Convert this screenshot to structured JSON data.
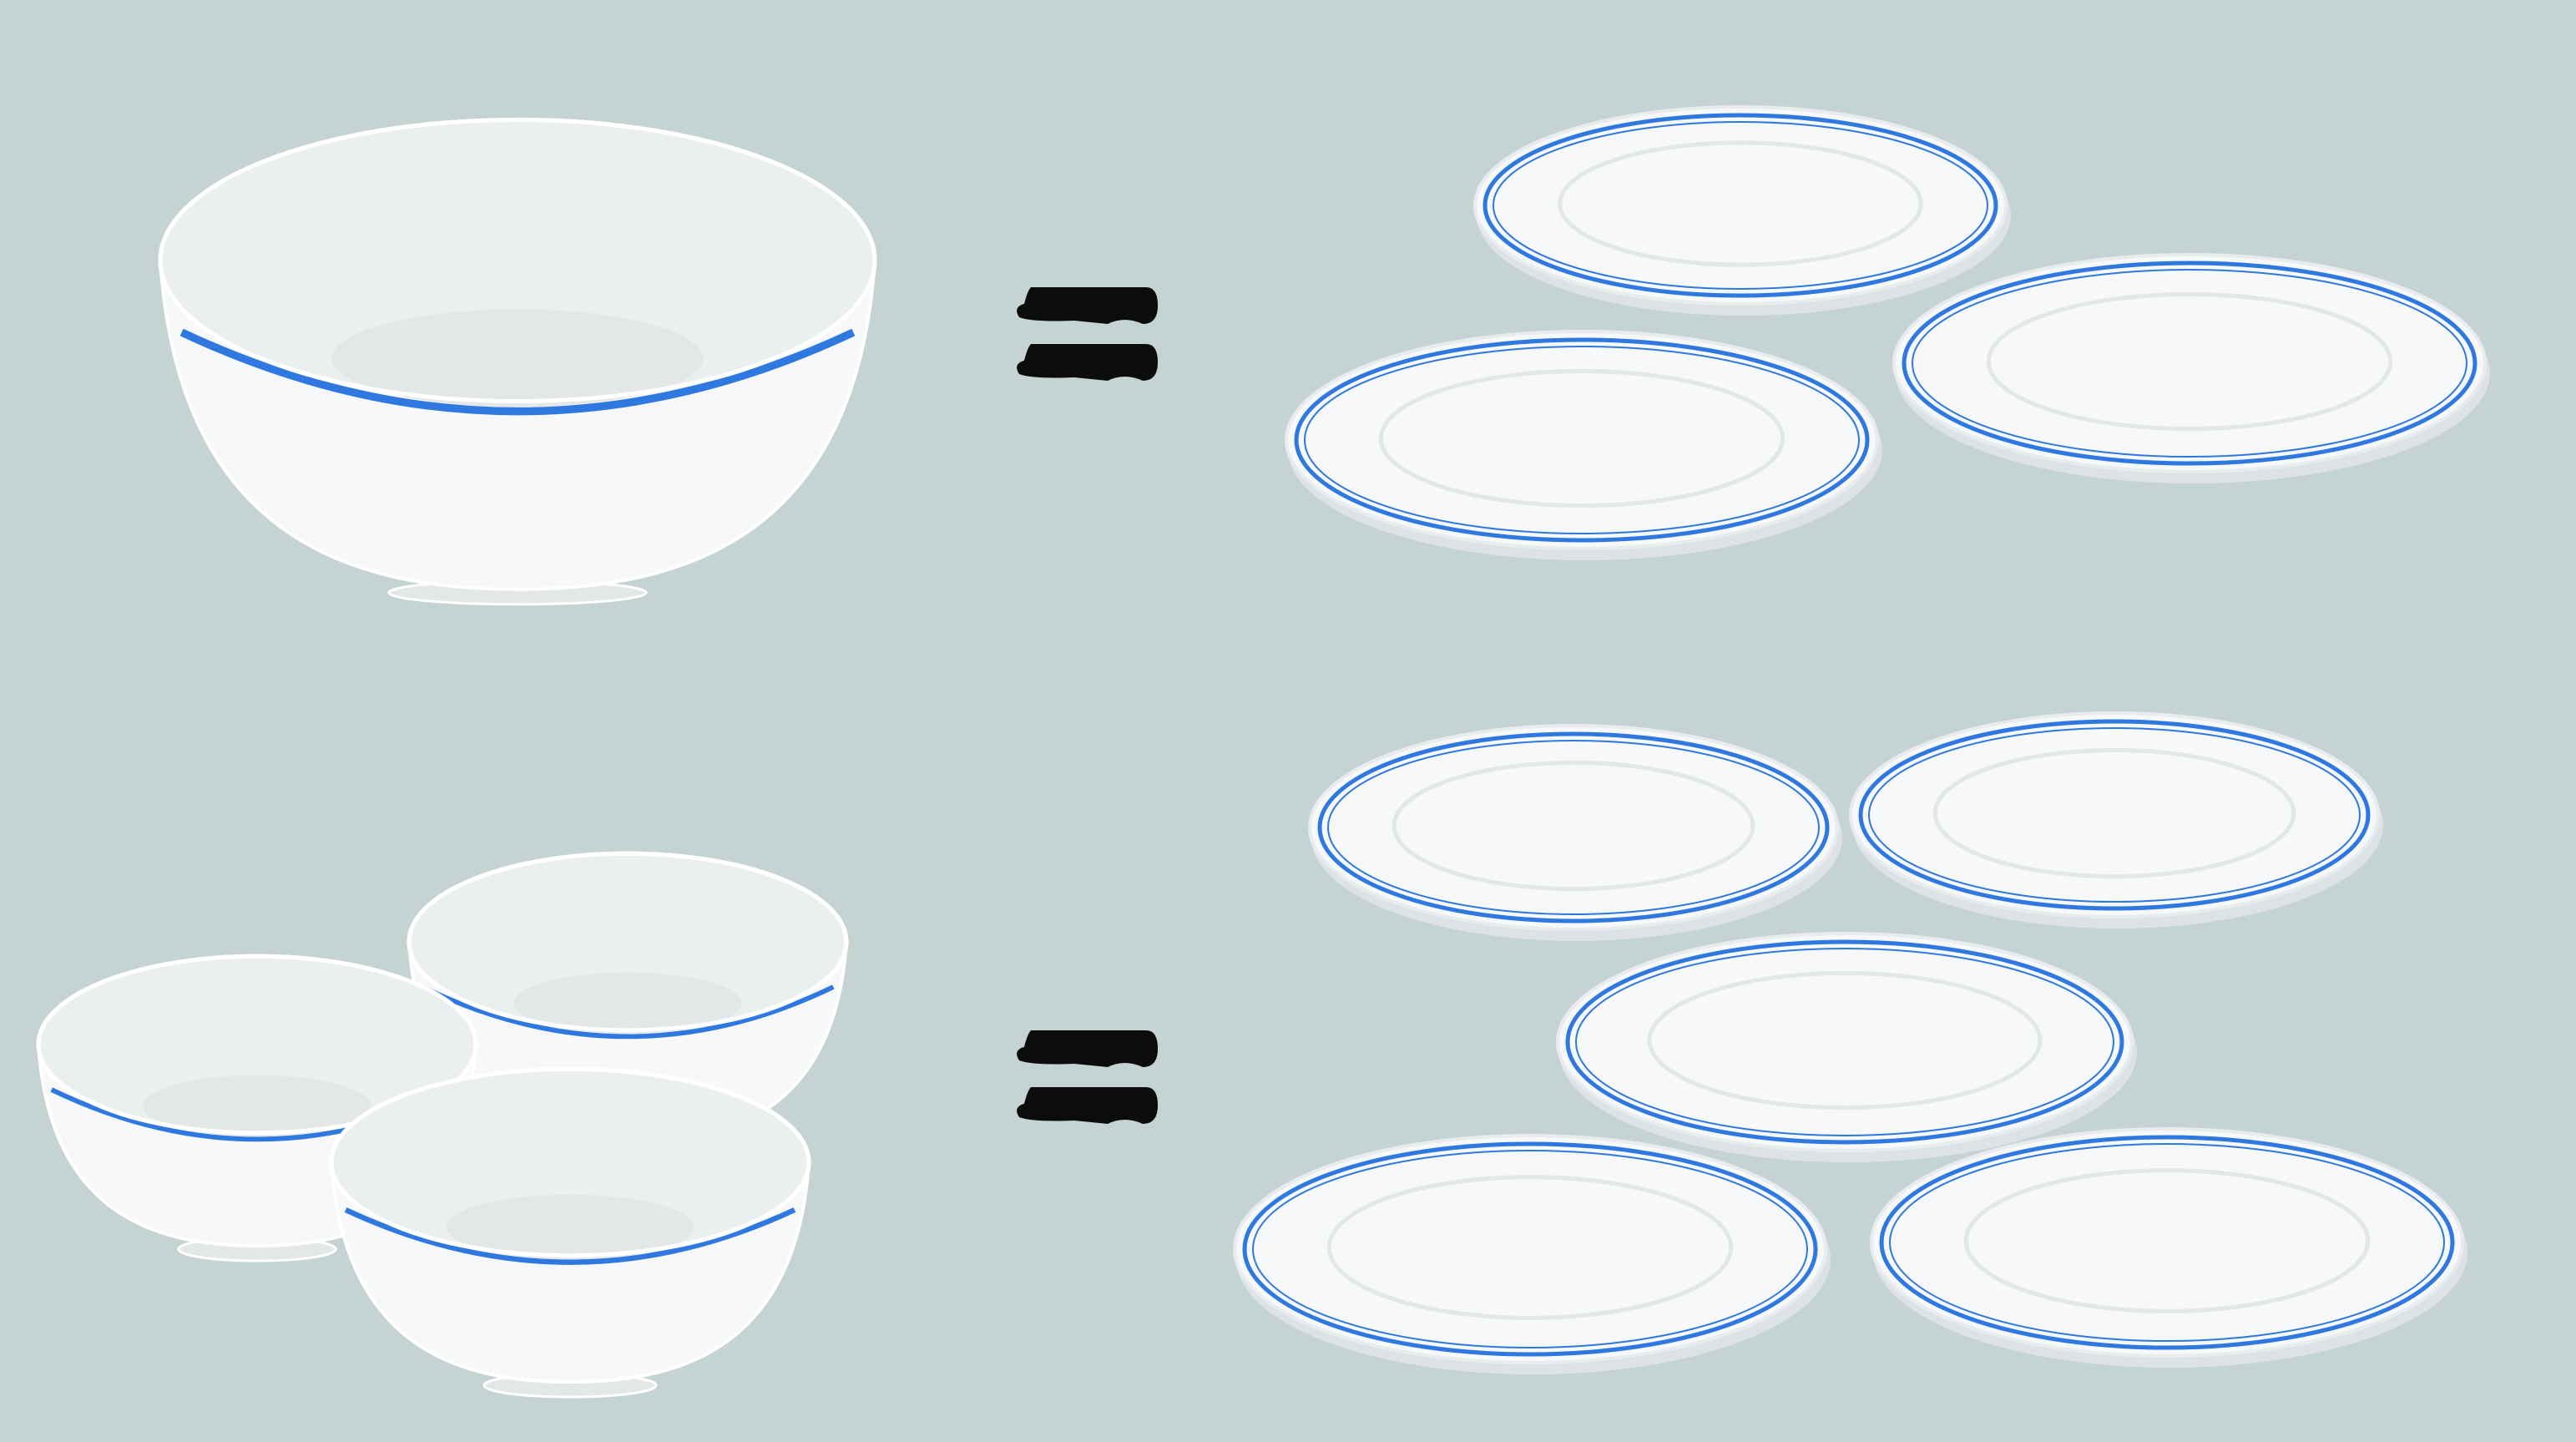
{
  "colors": {
    "background": "#c6d3d3",
    "porcelain": "#f6f8f9",
    "porcelain_inner": "#eceff0",
    "porcelain_shade": "#e3e7e8",
    "rim_blue": "#2f78e0",
    "outline": "#ffffff",
    "plate_shadow": "#dde3e4",
    "equals_mark": "#0b0d0c"
  },
  "equations": [
    {
      "name": "equation-top",
      "left": {
        "item": "large-bowl",
        "count": 1
      },
      "operator": "equals-sign",
      "right": {
        "item": "plate",
        "count": 3
      }
    },
    {
      "name": "equation-bottom",
      "left": {
        "item": "small-bowl",
        "count": 3
      },
      "operator": "equals-sign",
      "right": {
        "item": "plate",
        "count": 5
      }
    }
  ]
}
